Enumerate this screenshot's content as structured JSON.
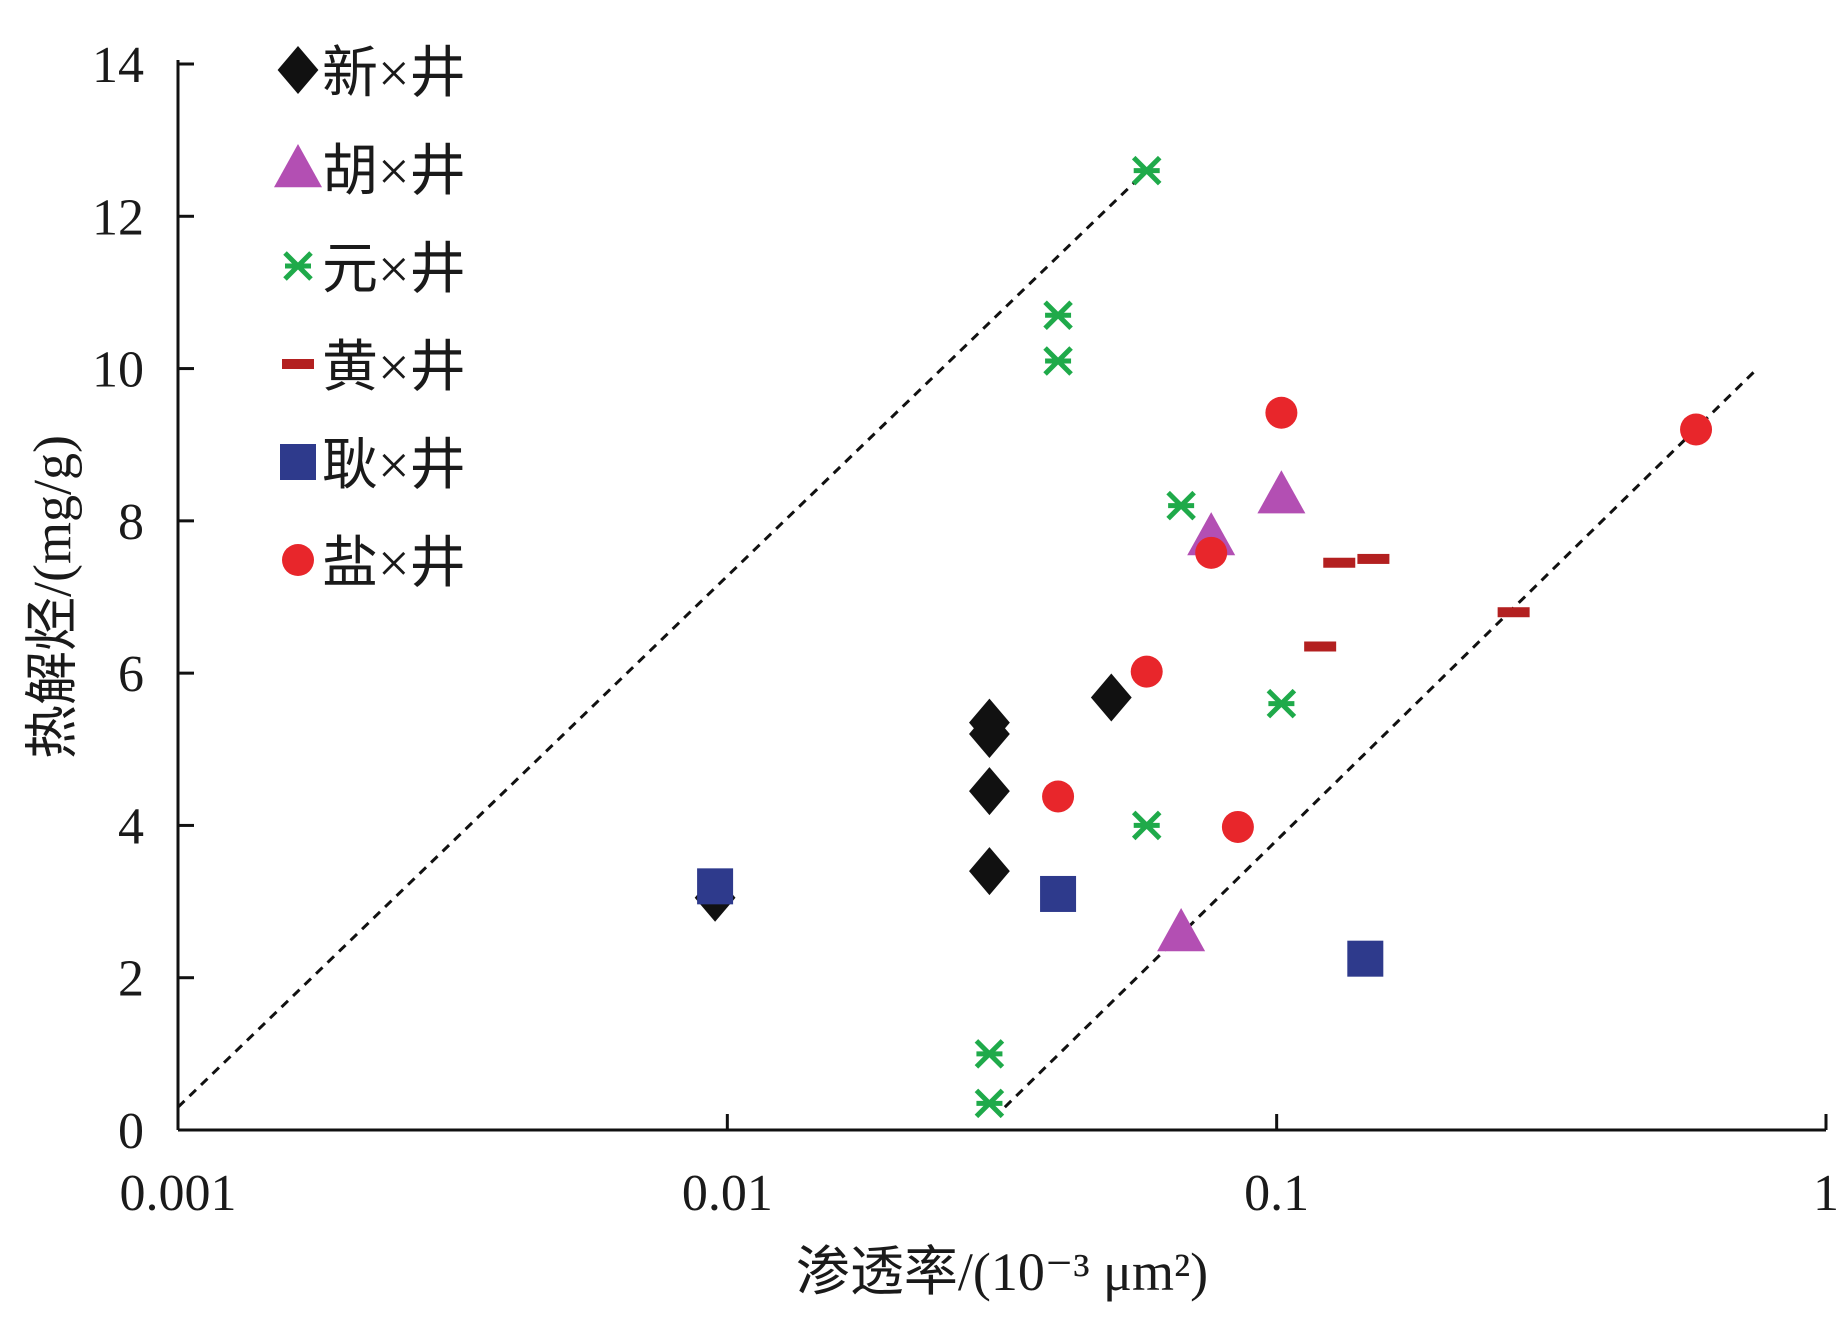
{
  "chart_data": {
    "type": "scatter",
    "x_scale": "log",
    "xlim": [
      0.001,
      1
    ],
    "ylim": [
      0,
      14
    ],
    "x_ticks": [
      0.001,
      0.01,
      0.1,
      1
    ],
    "x_tick_labels": [
      "0.001",
      "0.01",
      "0.1",
      "1"
    ],
    "y_ticks": [
      0,
      2,
      4,
      6,
      8,
      10,
      12,
      14
    ],
    "y_tick_labels": [
      "0",
      "2",
      "4",
      "6",
      "8",
      "10",
      "12",
      "14"
    ],
    "xlabel": "渗透率/(10⁻³ μm²)",
    "ylabel": "热解烃/(mg/g)",
    "grid": false,
    "legend_position": "top-left",
    "series": [
      {
        "name": "新×井",
        "marker": "diamond",
        "color": "#111111",
        "points": [
          [
            0.03,
            5.35
          ],
          [
            0.03,
            5.2
          ],
          [
            0.03,
            4.45
          ],
          [
            0.03,
            3.4
          ],
          [
            0.05,
            5.68
          ],
          [
            0.0095,
            3.05
          ]
        ]
      },
      {
        "name": "胡×井",
        "marker": "triangle",
        "color": "#b34fb3",
        "points": [
          [
            0.102,
            8.35
          ],
          [
            0.076,
            7.8
          ],
          [
            0.067,
            2.6
          ]
        ]
      },
      {
        "name": "元×井",
        "marker": "asterisk",
        "color": "#1faa4a",
        "points": [
          [
            0.058,
            12.6
          ],
          [
            0.04,
            10.7
          ],
          [
            0.04,
            10.1
          ],
          [
            0.067,
            8.2
          ],
          [
            0.102,
            5.6
          ],
          [
            0.058,
            4.0
          ],
          [
            0.03,
            1.0
          ],
          [
            0.03,
            0.35
          ]
        ]
      },
      {
        "name": "黄×井",
        "marker": "dash",
        "color": "#b32020",
        "points": [
          [
            0.12,
            6.35
          ],
          [
            0.13,
            7.45
          ],
          [
            0.15,
            7.5
          ],
          [
            0.27,
            6.8
          ]
        ]
      },
      {
        "name": "耿×井",
        "marker": "square",
        "color": "#2e3a8c",
        "points": [
          [
            0.0095,
            3.2
          ],
          [
            0.04,
            3.1
          ],
          [
            0.145,
            2.25
          ]
        ]
      },
      {
        "name": "盐×井",
        "marker": "circle",
        "color": "#e8262b",
        "points": [
          [
            0.102,
            9.42
          ],
          [
            0.076,
            7.58
          ],
          [
            0.058,
            6.02
          ],
          [
            0.04,
            4.38
          ],
          [
            0.085,
            3.98
          ],
          [
            0.58,
            9.2
          ]
        ]
      }
    ],
    "reference_lines": [
      {
        "style": "dashed",
        "color": "#111111",
        "from": [
          0.001,
          0.3
        ],
        "to": [
          0.058,
          12.6
        ]
      },
      {
        "style": "dashed",
        "color": "#111111",
        "from": [
          0.032,
          0.3
        ],
        "to": [
          0.75,
          10.0
        ]
      }
    ]
  }
}
